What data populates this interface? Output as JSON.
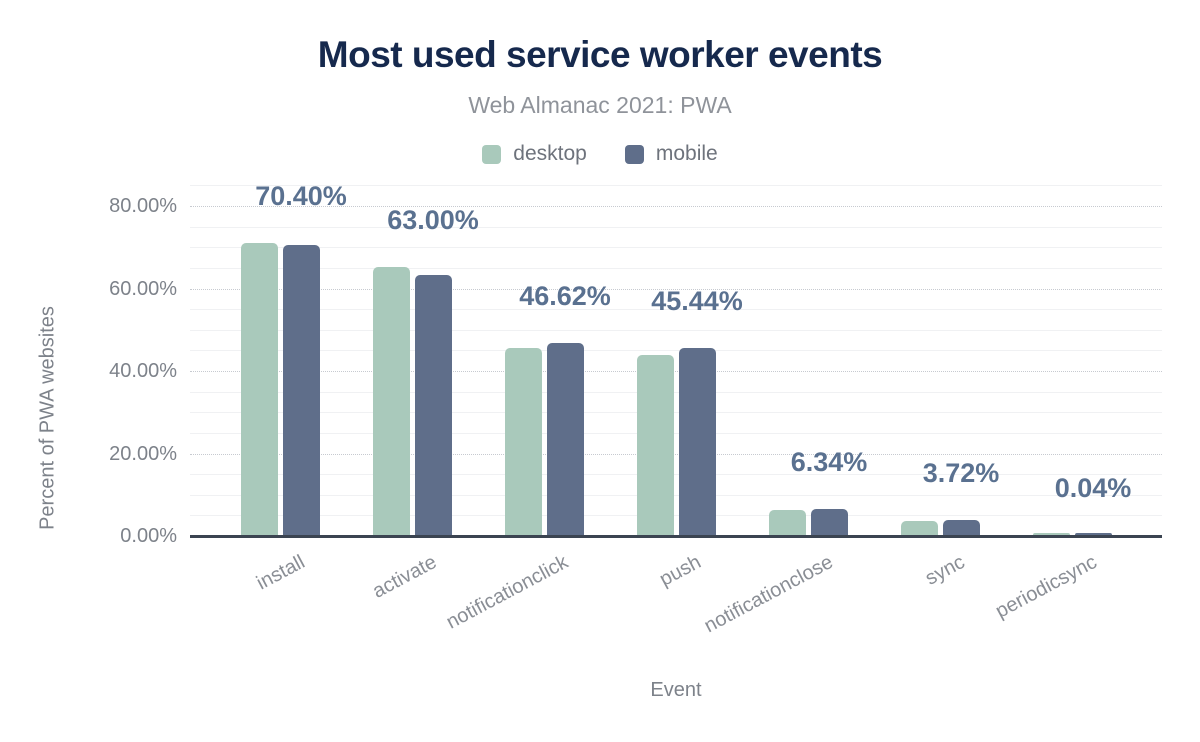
{
  "header": {
    "title": "Most used service worker events",
    "subtitle": "Web Almanac 2021: PWA"
  },
  "legend": [
    {
      "label": "desktop",
      "color": "#a9c9bb"
    },
    {
      "label": "mobile",
      "color": "#5f6e8a"
    }
  ],
  "chart_data": {
    "type": "bar",
    "title": "Most used service worker events",
    "subtitle": "Web Almanac 2021: PWA",
    "categories": [
      "install",
      "activate",
      "notificationclick",
      "push",
      "notificationclose",
      "sync",
      "periodicsync"
    ],
    "series": [
      {
        "name": "desktop",
        "color": "#a9c9bb",
        "values": [
          70.7,
          64.9,
          45.4,
          43.6,
          6.0,
          3.5,
          0.04
        ]
      },
      {
        "name": "mobile",
        "color": "#5f6e8a",
        "values": [
          70.4,
          63.0,
          46.62,
          45.44,
          6.34,
          3.72,
          0.04
        ]
      }
    ],
    "bar_labels": [
      "70.40%",
      "63.00%",
      "46.62%",
      "45.44%",
      "6.34%",
      "3.72%",
      "0.04%"
    ],
    "xlabel": "Event",
    "ylabel": "Percent of PWA websites",
    "ylim": [
      0,
      80
    ],
    "yticks": [
      "0.00%",
      "20.00%",
      "40.00%",
      "60.00%",
      "80.00%"
    ],
    "ytick_values": [
      0,
      20,
      40,
      60,
      80
    ],
    "grid": {
      "major_dotted_every": 20,
      "minor_solid_every": 5,
      "max_line": 85
    },
    "legend_position": "top",
    "bar_label_series": "mobile",
    "colors": {
      "title": "#16294d",
      "subtitle": "#8f939a",
      "axis_text": "#7d828a",
      "value_label": "#5a7190",
      "baseline": "#3b4451"
    }
  }
}
